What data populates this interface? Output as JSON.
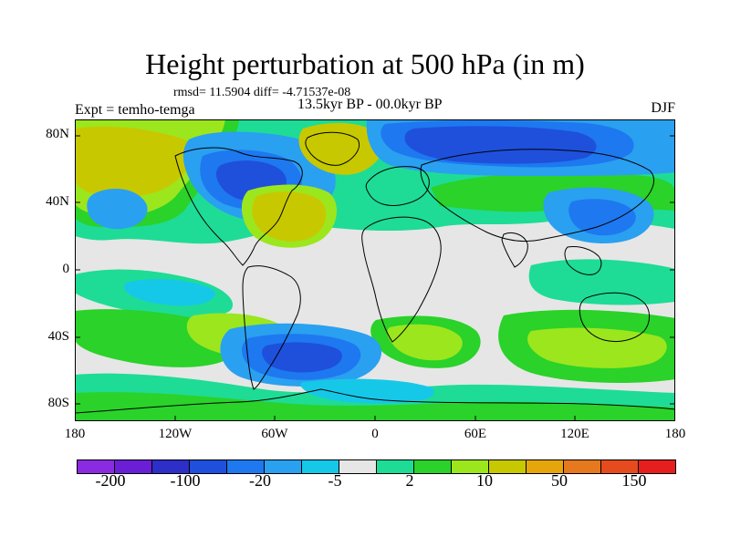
{
  "title": "Height perturbation at 500 hPa (in m)",
  "stats": "rmsd= 11.5904 diff= -4.71537e-08",
  "period": "13.5kyr BP - 00.0kyr BP",
  "experiment": "Expt = temho-temga",
  "season": "DJF",
  "lat_labels": [
    "80N",
    "40N",
    "0",
    "40S",
    "80S"
  ],
  "lon_labels": [
    "180",
    "120W",
    "60W",
    "0",
    "60E",
    "120E",
    "180"
  ],
  "colorbar": {
    "colors": [
      "#8a2be2",
      "#6a1fd6",
      "#2e2ec8",
      "#1e50dc",
      "#1e78f0",
      "#2aa0f0",
      "#16c8e8",
      "#e6e6e6",
      "#1edc96",
      "#2ad22a",
      "#9ce61e",
      "#c8c800",
      "#e6a50a",
      "#e6781e",
      "#e64b1e",
      "#e61e1e"
    ],
    "labels": [
      "-200",
      "-100",
      "-20",
      "-5",
      "2",
      "10",
      "50",
      "150"
    ]
  },
  "legend_classes": {
    "neg_strong": "#1e50dc",
    "neg_mid": "#1e78f0",
    "neg_weak": "#2aa0f0",
    "neg_small": "#16c8e8",
    "near_zero": "#e6e6e6",
    "pos_small": "#1edc96",
    "pos_weak": "#2ad22a",
    "pos_mid": "#9ce61e",
    "pos_strong": "#c8c800"
  }
}
